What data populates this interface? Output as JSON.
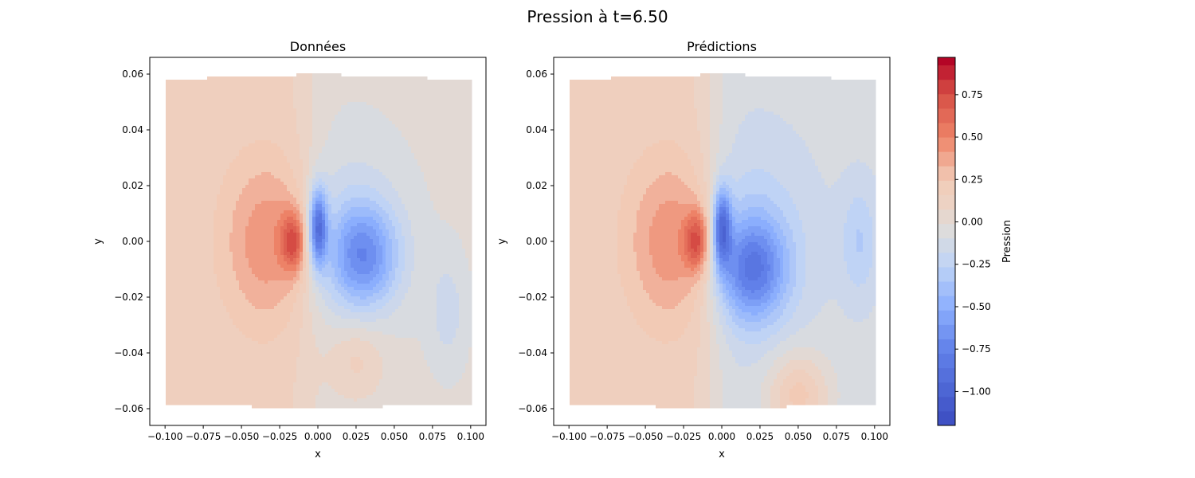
{
  "figure": {
    "title": "Pression à t=6.50"
  },
  "chart_data": [
    {
      "type": "heatmap",
      "title": "Données",
      "xlabel": "x",
      "ylabel": "y",
      "xlim": [
        -0.11,
        0.11
      ],
      "ylim": [
        -0.066,
        0.066
      ],
      "x_ticks": [
        -0.1,
        -0.075,
        -0.05,
        -0.025,
        0.0,
        0.025,
        0.05,
        0.075,
        0.1
      ],
      "x_tick_labels": [
        "−0.100",
        "−0.075",
        "−0.050",
        "−0.025",
        "0.000",
        "0.025",
        "0.050",
        "0.075",
        "0.100"
      ],
      "y_ticks": [
        -0.06,
        -0.04,
        -0.02,
        0.0,
        0.02,
        0.04,
        0.06
      ],
      "y_tick_labels": [
        "−0.06",
        "−0.04",
        "−0.02",
        "0.00",
        "0.02",
        "0.04",
        "0.06"
      ],
      "colormap": "coolwarm",
      "grid": false,
      "field": {
        "background": 0.15,
        "upper_right_region": -0.02,
        "high_core": {
          "center": [
            -0.016,
            0.0
          ],
          "peak": 0.8
        },
        "low_core": {
          "center": [
            0.0,
            0.005
          ],
          "peak": -0.95
        },
        "low_lobe": {
          "center": [
            0.03,
            -0.005
          ],
          "peak": -0.55
        },
        "right_edge_low": {
          "center": [
            0.085,
            -0.025
          ],
          "peak": -0.15
        },
        "bottom_high": {
          "center": [
            0.025,
            -0.042
          ],
          "peak": 0.2
        }
      }
    },
    {
      "type": "heatmap",
      "title": "Prédictions",
      "xlabel": "x",
      "ylabel": "y",
      "xlim": [
        -0.11,
        0.11
      ],
      "ylim": [
        -0.066,
        0.066
      ],
      "x_ticks": [
        -0.1,
        -0.075,
        -0.05,
        -0.025,
        0.0,
        0.025,
        0.05,
        0.075,
        0.1
      ],
      "x_tick_labels": [
        "−0.100",
        "−0.075",
        "−0.050",
        "−0.025",
        "0.000",
        "0.025",
        "0.050",
        "0.075",
        "0.100"
      ],
      "y_ticks": [
        -0.06,
        -0.04,
        -0.02,
        0.0,
        0.02,
        0.04,
        0.06
      ],
      "y_tick_labels": [
        "−0.06",
        "−0.04",
        "−0.02",
        "0.00",
        "0.02",
        "0.04",
        "0.06"
      ],
      "colormap": "coolwarm",
      "grid": false,
      "field": {
        "background": 0.15,
        "upper_right_region": -0.1,
        "high_core": {
          "center": [
            -0.016,
            0.0
          ],
          "peak": 0.8
        },
        "low_core": {
          "center": [
            0.0,
            0.005
          ],
          "peak": -0.9
        },
        "low_lobe": {
          "center": [
            0.02,
            -0.01
          ],
          "peak": -0.6
        },
        "right_edge_low": {
          "center": [
            0.09,
            0.0
          ],
          "peak": -0.2
        },
        "bottom_high": {
          "center": [
            0.05,
            -0.055
          ],
          "peak": 0.35
        }
      }
    }
  ],
  "colorbar": {
    "label": "Pression",
    "range": [
      -1.2,
      0.97
    ],
    "ticks": [
      -1.0,
      -0.75,
      -0.5,
      -0.25,
      0.0,
      0.25,
      0.5,
      0.75
    ],
    "tick_labels": [
      "−1.00",
      "−0.75",
      "−0.50",
      "−0.25",
      "0.00",
      "0.25",
      "0.50",
      "0.75"
    ],
    "colormap": "coolwarm"
  }
}
